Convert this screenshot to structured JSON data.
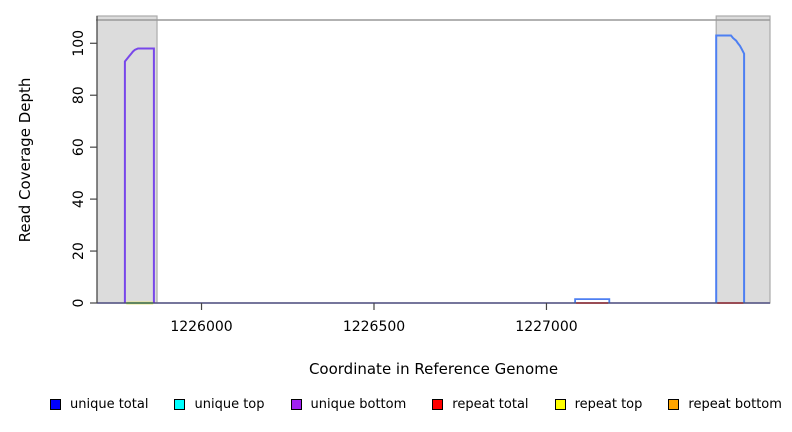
{
  "chart_data": {
    "type": "line",
    "title": "",
    "xlabel": "Coordinate in Reference Genome",
    "ylabel": "Read Coverage Depth",
    "xlim": [
      1225697,
      1227648
    ],
    "ylim": [
      0,
      110.5
    ],
    "x_ticks": [
      1226000,
      1226500,
      1227000
    ],
    "y_ticks": [
      0,
      20,
      40,
      60,
      80,
      100
    ],
    "grid": false,
    "legend_position": "bottom",
    "shaded_regions": [
      {
        "name": "left-gray-region",
        "x0": 1225697,
        "x1": 1225871,
        "fill": "#DCDCDC",
        "border": "#ABABAB"
      },
      {
        "name": "right-gray-region",
        "x0": 1227492,
        "x1": 1227648,
        "fill": "#DCDCDC",
        "border": "#ABABAB"
      }
    ],
    "series": [
      {
        "name": "baseline-coverage",
        "color": "#8B8BEF",
        "width": 1.8,
        "points": [
          [
            1225697,
            0
          ],
          [
            1227648,
            0
          ]
        ]
      },
      {
        "name": "repeat-top-left-segment",
        "color": "#EDE98A",
        "width": 3,
        "points": [
          [
            1225782,
            0
          ],
          [
            1225860,
            0
          ]
        ]
      },
      {
        "name": "green-left-segment",
        "color": "#7CC87C",
        "width": 2,
        "points": [
          [
            1225782,
            0
          ],
          [
            1225860,
            0
          ]
        ]
      },
      {
        "name": "repeat-total-bump-segment",
        "color": "#EE5566",
        "width": 2,
        "points": [
          [
            1227086,
            0
          ],
          [
            1227179,
            0
          ]
        ]
      },
      {
        "name": "repeat-total-right-segment",
        "color": "#EE5566",
        "width": 2,
        "points": [
          [
            1227495,
            0
          ],
          [
            1227571,
            0
          ]
        ]
      },
      {
        "name": "unique-coverage-bump",
        "color": "#4D7FF2",
        "width": 1.8,
        "points": [
          [
            1227083,
            0
          ],
          [
            1227083,
            1.5
          ],
          [
            1227182,
            1.5
          ],
          [
            1227182,
            0
          ]
        ]
      },
      {
        "name": "unique-top-right-peak",
        "color": "#4D7FF2",
        "width": 2,
        "points": [
          [
            1227492,
            0
          ],
          [
            1227492,
            103
          ],
          [
            1227535,
            103
          ],
          [
            1227541,
            102
          ],
          [
            1227550,
            101
          ],
          [
            1227555,
            100
          ],
          [
            1227561,
            99
          ],
          [
            1227567,
            97.5
          ],
          [
            1227573,
            96
          ],
          [
            1227573,
            0
          ]
        ]
      },
      {
        "name": "unique-bottom-left-peak",
        "color": "#7847EA",
        "width": 2,
        "points": [
          [
            1225778,
            0
          ],
          [
            1225778,
            93
          ],
          [
            1225784,
            94
          ],
          [
            1225790,
            95
          ],
          [
            1225796,
            96
          ],
          [
            1225801,
            96.8
          ],
          [
            1225807,
            97.5
          ],
          [
            1225816,
            98
          ],
          [
            1225862,
            98
          ],
          [
            1225862,
            0
          ]
        ]
      }
    ],
    "legend": [
      {
        "label": "unique total",
        "color": "#0000FF"
      },
      {
        "label": "unique top",
        "color": "#00FFFF"
      },
      {
        "label": "unique bottom",
        "color": "#A020F0"
      },
      {
        "label": "repeat total",
        "color": "#FF0000"
      },
      {
        "label": "repeat top",
        "color": "#FFFF00"
      },
      {
        "label": "repeat bottom",
        "color": "#FFA500"
      }
    ]
  }
}
